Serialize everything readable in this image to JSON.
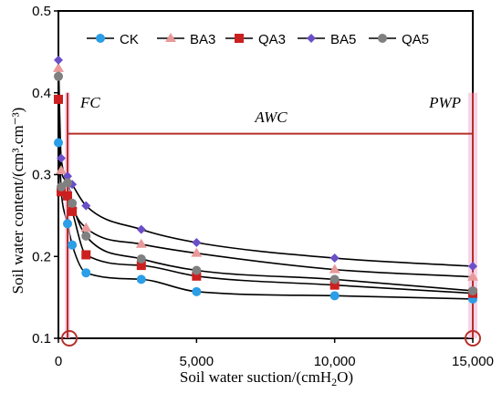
{
  "chart_data": {
    "type": "scatter",
    "xlabel_main": "Soil water suction/(cmH",
    "xlabel_sub": "2",
    "xlabel_end": "O)",
    "ylabel": "Soil water content/(cm³.cm⁻³)",
    "xlim": [
      0,
      15000
    ],
    "ylim": [
      0.1,
      0.5
    ],
    "x_ticks": [
      0,
      5000,
      10000,
      15000
    ],
    "x_tick_labels": [
      "0",
      "5,000",
      "10,000",
      "15,000"
    ],
    "y_ticks": [
      0.1,
      0.2,
      0.3,
      0.4,
      0.5
    ],
    "y_tick_labels": [
      "0.1",
      "0.2",
      "0.3",
      "0.4",
      "0.5"
    ],
    "grid": false,
    "legend_position": "top",
    "annotations": {
      "fc": "FC",
      "awc": "AWC",
      "pwp": "PWP"
    },
    "reference": {
      "fc_x": 330,
      "pwp_x": 15000,
      "awc_y": 0.35,
      "color": "#b5302a"
    },
    "series": [
      {
        "name": "CK",
        "color": "#2a9ee6",
        "marker": "circle",
        "x": [
          0,
          100,
          330,
          500,
          1000,
          3000,
          5000,
          10000,
          15000
        ],
        "y": [
          0.339,
          0.28,
          0.24,
          0.214,
          0.18,
          0.172,
          0.157,
          0.152,
          0.148
        ]
      },
      {
        "name": "BA3",
        "color": "#e99999",
        "marker": "triangle",
        "x": [
          0,
          100,
          330,
          500,
          1000,
          3000,
          5000,
          10000,
          15000
        ],
        "y": [
          0.43,
          0.305,
          0.292,
          0.263,
          0.235,
          0.215,
          0.204,
          0.184,
          0.175
        ]
      },
      {
        "name": "QA3",
        "color": "#cc1f1f",
        "marker": "square",
        "x": [
          0,
          100,
          330,
          500,
          1000,
          3000,
          5000,
          10000,
          15000
        ],
        "y": [
          0.392,
          0.279,
          0.274,
          0.255,
          0.202,
          0.189,
          0.176,
          0.165,
          0.155
        ]
      },
      {
        "name": "BA5",
        "color": "#6a4fc8",
        "marker": "diamond",
        "x": [
          0,
          100,
          330,
          500,
          1000,
          3000,
          5000,
          10000,
          15000
        ],
        "y": [
          0.44,
          0.32,
          0.298,
          0.288,
          0.262,
          0.233,
          0.217,
          0.198,
          0.188
        ]
      },
      {
        "name": "QA5",
        "color": "#808080",
        "marker": "circle",
        "x": [
          0,
          100,
          330,
          500,
          1000,
          3000,
          5000,
          10000,
          15000
        ],
        "y": [
          0.42,
          0.285,
          0.29,
          0.265,
          0.225,
          0.197,
          0.183,
          0.172,
          0.158
        ]
      }
    ]
  }
}
